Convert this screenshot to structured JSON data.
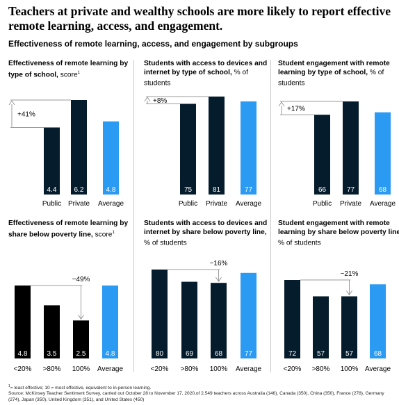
{
  "title": "Teachers at private and wealthy schools are more likely to report effective remote learning, access, and engagement.",
  "subtitle": "Effectiveness of remote learning, access, and engagement by subgroups",
  "colors": {
    "dark": "#051c2c",
    "black": "#000000",
    "average": "#2b9af3",
    "arrow": "#9a9a9a",
    "divider": "#c9c9c9"
  },
  "footnotes": {
    "note1_mark": "1",
    "note1": "= least effective; 10 = most effective, equivalent to in-person learning.",
    "source": "Source: McKinsey Teacher Sentiment Survey, carried out October 28 to November 17, 2020,of 2,549 teachers across Australia (146), Canada (350), China (350), France (278), Germany (274), Japan (350), United Kingdom (351), and United States (450)"
  },
  "chart_data": [
    {
      "type": "bar",
      "title_bold": "Effectiveness of remote learning by type of school,",
      "title_rest": " score",
      "title_sup": "1",
      "categories": [
        "Public",
        "Private",
        "Average"
      ],
      "values": [
        4.4,
        6.2,
        4.8
      ],
      "value_labels": [
        "4.4",
        "6.2",
        "4.8"
      ],
      "colors": [
        "#051c2c",
        "#051c2c",
        "#2b9af3"
      ],
      "ylim": [
        0,
        6.2
      ],
      "annotation": {
        "text": "+41%",
        "from": 0,
        "to": 1
      }
    },
    {
      "type": "bar",
      "title_bold": "Students with access to devices and internet by type of school,",
      "title_rest": " % of students",
      "title_sup": "",
      "categories": [
        "Public",
        "Private",
        "Average"
      ],
      "values": [
        75,
        81,
        77
      ],
      "value_labels": [
        "75",
        "81",
        "77"
      ],
      "colors": [
        "#051c2c",
        "#051c2c",
        "#2b9af3"
      ],
      "ylim": [
        0,
        81
      ],
      "annotation": {
        "text": "+8%",
        "from": 0,
        "to": 1
      }
    },
    {
      "type": "bar",
      "title_bold": "Student engagement with remote learning by type of school,",
      "title_rest": " % of students",
      "title_sup": "",
      "categories": [
        "Public",
        "Private",
        "Average"
      ],
      "values": [
        66,
        77,
        68
      ],
      "value_labels": [
        "66",
        "77",
        "68"
      ],
      "colors": [
        "#051c2c",
        "#051c2c",
        "#2b9af3"
      ],
      "ylim": [
        0,
        77
      ],
      "annotation": {
        "text": "+17%",
        "from": 0,
        "to": 1
      }
    },
    {
      "type": "bar",
      "title_bold": "Effectiveness of remote learning by share below poverty line,",
      "title_rest": " score",
      "title_sup": "1",
      "categories": [
        "<20%",
        ">80%",
        "100%",
        "Average"
      ],
      "values": [
        4.8,
        3.5,
        2.5,
        4.8
      ],
      "value_labels": [
        "4.8",
        "3.5",
        "2.5",
        "4.8"
      ],
      "colors": [
        "#000000",
        "#000000",
        "#000000",
        "#2b9af3"
      ],
      "ylim": [
        0,
        4.8
      ],
      "annotation": {
        "text": "−49%",
        "from": 0,
        "to": 2
      }
    },
    {
      "type": "bar",
      "title_bold": "Students with access to devices and internet by share below poverty line,",
      "title_rest": " % of students",
      "title_sup": "",
      "categories": [
        "<20%",
        ">80%",
        "100%",
        "Average"
      ],
      "values": [
        80,
        69,
        68,
        77
      ],
      "value_labels": [
        "80",
        "69",
        "68",
        "77"
      ],
      "colors": [
        "#051c2c",
        "#051c2c",
        "#051c2c",
        "#2b9af3"
      ],
      "ylim": [
        0,
        80
      ],
      "annotation": {
        "text": "−16%",
        "from": 0,
        "to": 2
      }
    },
    {
      "type": "bar",
      "title_bold": "Student engagement with remote learning by share below poverty line,",
      "title_rest": " % of students",
      "title_sup": "",
      "categories": [
        "<20%",
        ">80%",
        "100%",
        "Average"
      ],
      "values": [
        72,
        57,
        57,
        68
      ],
      "value_labels": [
        "72",
        "57",
        "57",
        "68"
      ],
      "colors": [
        "#051c2c",
        "#051c2c",
        "#051c2c",
        "#2b9af3"
      ],
      "ylim": [
        0,
        72
      ],
      "annotation": {
        "text": "−21%",
        "from": 0,
        "to": 2
      }
    }
  ]
}
